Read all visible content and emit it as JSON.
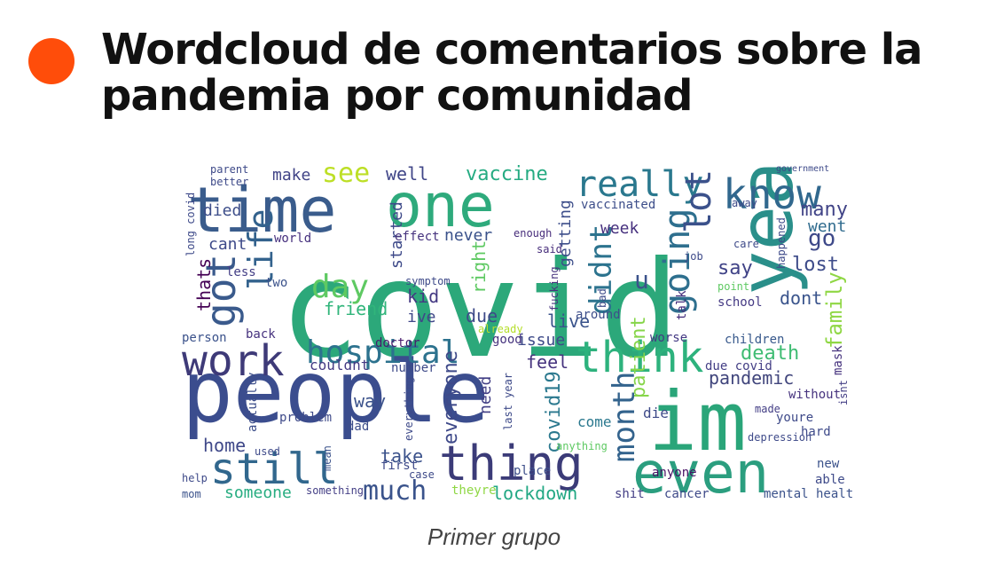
{
  "slide": {
    "title": "Wordcloud de comentarios sobre la pandemia por comunidad",
    "caption": "Primer grupo",
    "bullet_color": "#ff4d0a"
  },
  "wordcloud": {
    "words": [
      {
        "text": "covid",
        "color": "#2ca87a"
      },
      {
        "text": "people",
        "color": "#3b4d8e"
      },
      {
        "text": "time",
        "color": "#3a5c8c"
      },
      {
        "text": "one",
        "color": "#2eaa7c"
      },
      {
        "text": "year",
        "color": "#2a8f8a"
      },
      {
        "text": "im",
        "color": "#2aa579"
      },
      {
        "text": "even",
        "color": "#2b9e7f"
      },
      {
        "text": "thing",
        "color": "#3b3b78"
      },
      {
        "text": "still",
        "color": "#31678d"
      },
      {
        "text": "work",
        "color": "#3e3a78"
      },
      {
        "text": "know",
        "color": "#31688e"
      },
      {
        "text": "think",
        "color": "#2db27d"
      },
      {
        "text": "hospital",
        "color": "#2c728e"
      },
      {
        "text": "really",
        "color": "#2a788e"
      },
      {
        "text": "got",
        "color": "#3a5a8c"
      },
      {
        "text": "life",
        "color": "#33628d"
      },
      {
        "text": "day",
        "color": "#5ec962"
      },
      {
        "text": "going",
        "color": "#2e6f8e"
      },
      {
        "text": "lot",
        "color": "#3b518b"
      },
      {
        "text": "didnt",
        "color": "#2c738e"
      },
      {
        "text": "much",
        "color": "#3a538b"
      },
      {
        "text": "month",
        "color": "#33638d"
      },
      {
        "text": "see",
        "color": "#bddf26"
      },
      {
        "text": "death",
        "color": "#3fbc73"
      },
      {
        "text": "go",
        "color": "#3e4989"
      },
      {
        "text": "u",
        "color": "#3b528b"
      },
      {
        "text": "family",
        "color": "#8fd744"
      },
      {
        "text": "pandemic",
        "color": "#40457c"
      },
      {
        "text": "feel",
        "color": "#46337e"
      },
      {
        "text": "many",
        "color": "#414487"
      },
      {
        "text": "went",
        "color": "#2f6b8e"
      },
      {
        "text": "lost",
        "color": "#3e4c8a"
      },
      {
        "text": "say",
        "color": "#404387"
      },
      {
        "text": "dont",
        "color": "#3a548c"
      },
      {
        "text": "covid19",
        "color": "#2a788e"
      },
      {
        "text": "everyone",
        "color": "#3e4989"
      },
      {
        "text": "patient",
        "color": "#86d549"
      },
      {
        "text": "need",
        "color": "#423f85"
      },
      {
        "text": "take",
        "color": "#3b528b"
      },
      {
        "text": "home",
        "color": "#3f4889"
      },
      {
        "text": "someone",
        "color": "#27ad81"
      },
      {
        "text": "lockdown",
        "color": "#22a884"
      },
      {
        "text": "vaccine",
        "color": "#25ab82"
      },
      {
        "text": "well",
        "color": "#404688"
      },
      {
        "text": "make",
        "color": "#414487"
      },
      {
        "text": "cant",
        "color": "#3e4a89"
      },
      {
        "text": "died",
        "color": "#3d4e8a"
      },
      {
        "text": "thats",
        "color": "#440154"
      },
      {
        "text": "kid",
        "color": "#443983"
      },
      {
        "text": "ive",
        "color": "#3f4788"
      },
      {
        "text": "friend",
        "color": "#31b57b"
      },
      {
        "text": "due",
        "color": "#3e4a89"
      },
      {
        "text": "live",
        "color": "#3a538b"
      },
      {
        "text": "right",
        "color": "#5ec962"
      },
      {
        "text": "started",
        "color": "#3e4a89"
      },
      {
        "text": "never",
        "color": "#3b528b"
      },
      {
        "text": "week",
        "color": "#46307e"
      },
      {
        "text": "getting",
        "color": "#3d4e8a"
      },
      {
        "text": "way",
        "color": "#3b528b"
      },
      {
        "text": "issue",
        "color": "#3e4a89"
      },
      {
        "text": "couldnt",
        "color": "#443a83"
      },
      {
        "text": "mask",
        "color": "#46337e"
      },
      {
        "text": "children",
        "color": "#38598c"
      },
      {
        "text": "school",
        "color": "#443983"
      },
      {
        "text": "due covid",
        "color": "#433e85"
      },
      {
        "text": "mental health",
        "color": "#3b528b"
      },
      {
        "text": "cancer",
        "color": "#3e4a89"
      },
      {
        "text": "anyone",
        "color": "#471164"
      },
      {
        "text": "die",
        "color": "#3e4a89"
      },
      {
        "text": "worse",
        "color": "#443983"
      },
      {
        "text": "talk",
        "color": "#46307e"
      },
      {
        "text": "doctor",
        "color": "#481b6d"
      },
      {
        "text": "back",
        "color": "#46327e"
      },
      {
        "text": "person",
        "color": "#3b528b"
      },
      {
        "text": "world",
        "color": "#46307e"
      },
      {
        "text": "actually",
        "color": "#3d4e8a"
      },
      {
        "text": "problem",
        "color": "#3e4a89"
      },
      {
        "text": "dad",
        "color": "#3d4e8a"
      },
      {
        "text": "come",
        "color": "#2a788e"
      },
      {
        "text": "place",
        "color": "#3d4e8a"
      },
      {
        "text": "shit",
        "color": "#433e85"
      },
      {
        "text": "without",
        "color": "#46337e"
      },
      {
        "text": "hard",
        "color": "#3e4a89"
      },
      {
        "text": "youre",
        "color": "#3e4a89"
      },
      {
        "text": "made",
        "color": "#433e85"
      },
      {
        "text": "new",
        "color": "#3b528b"
      },
      {
        "text": "able",
        "color": "#3e4a89"
      },
      {
        "text": "good",
        "color": "#46337e"
      },
      {
        "text": "effect",
        "color": "#46337e"
      },
      {
        "text": "enough",
        "color": "#472d7b"
      },
      {
        "text": "said",
        "color": "#472d7b"
      },
      {
        "text": "vaccinated",
        "color": "#3d4e8a"
      },
      {
        "text": "around",
        "color": "#3d4e8a"
      },
      {
        "text": "isnt",
        "color": "#433e85"
      },
      {
        "text": "two",
        "color": "#3b528b"
      },
      {
        "text": "less",
        "color": "#433e85"
      },
      {
        "text": "first",
        "color": "#3e4a89"
      },
      {
        "text": "case",
        "color": "#3e4a89"
      },
      {
        "text": "used",
        "color": "#3e4a89"
      },
      {
        "text": "mean",
        "color": "#3b528b"
      },
      {
        "text": "help",
        "color": "#3e4a89"
      },
      {
        "text": "mom",
        "color": "#3b528b"
      },
      {
        "text": "something",
        "color": "#433e85"
      },
      {
        "text": "theyre",
        "color": "#8fd744"
      },
      {
        "text": "number",
        "color": "#3e4a89"
      },
      {
        "text": "everything",
        "color": "#3e4a89"
      },
      {
        "text": "already",
        "color": "#b5de2b"
      },
      {
        "text": "symptom",
        "color": "#3e4a89"
      },
      {
        "text": "fucking",
        "color": "#46337e"
      },
      {
        "text": "bad",
        "color": "#3e4a89"
      },
      {
        "text": "point",
        "color": "#5ec962"
      },
      {
        "text": "long covid",
        "color": "#3e4a89"
      },
      {
        "text": "parent",
        "color": "#3e4a89"
      },
      {
        "text": "better",
        "color": "#3e4a89"
      },
      {
        "text": "last year",
        "color": "#3e4a89"
      },
      {
        "text": "anything",
        "color": "#5ec962"
      },
      {
        "text": "depression",
        "color": "#3e4a89"
      },
      {
        "text": "care",
        "color": "#3e4a89"
      },
      {
        "text": "job",
        "color": "#3e4a89"
      },
      {
        "text": "happened",
        "color": "#3e4a89"
      },
      {
        "text": "away",
        "color": "#3e4a89"
      },
      {
        "text": "government",
        "color": "#3e4a89"
      }
    ]
  }
}
